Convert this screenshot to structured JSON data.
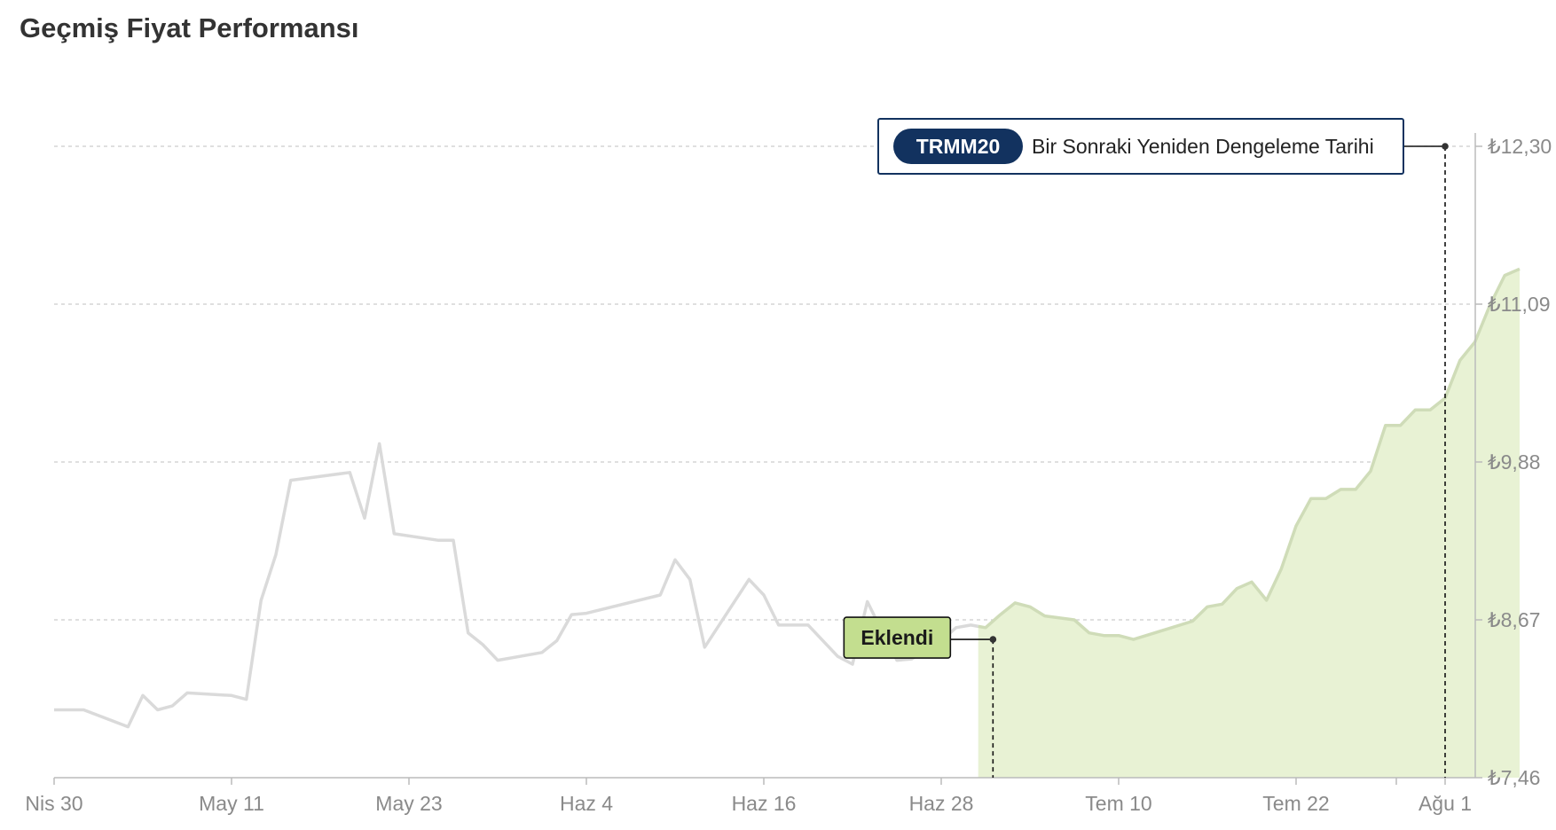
{
  "page": {
    "title": "Geçmiş Fiyat Performansı"
  },
  "chart_data": {
    "type": "line",
    "title": "",
    "xlabel": "",
    "ylabel": "",
    "x_tick_labels": [
      "Nis 30",
      "May 11",
      "May 23",
      "Haz 4",
      "Haz 16",
      "Haz 28",
      "Tem 10",
      "Tem 22",
      "Ağu 1"
    ],
    "y_tick_labels": [
      "₺7,46",
      "₺8,67",
      "₺9,88",
      "₺11,09",
      "₺12,30"
    ],
    "ylim": [
      7.46,
      12.3
    ],
    "grid": true,
    "colors": {
      "line": "#dadada",
      "highlight_line": "#cfdcb8",
      "highlight_fill": "#e8f2d4",
      "badge": "#12325f",
      "added_label_fill": "#c3de8f",
      "grid": "#cccccc",
      "axis": "#bbbbbb",
      "tick_text": "#8a8a8a"
    },
    "series": [
      {
        "values": [
          [
            0,
            7.98
          ],
          [
            2,
            7.98
          ],
          [
            5,
            7.85
          ],
          [
            6,
            8.09
          ],
          [
            7,
            7.98
          ],
          [
            8,
            8.01
          ],
          [
            9,
            8.11
          ],
          [
            12,
            8.09
          ],
          [
            13,
            8.06
          ],
          [
            14,
            8.82
          ],
          [
            15,
            9.17
          ],
          [
            16,
            9.74
          ],
          [
            20,
            9.8
          ],
          [
            21,
            9.45
          ],
          [
            22,
            10.02
          ],
          [
            23,
            9.33
          ],
          [
            26,
            9.28
          ],
          [
            27,
            9.28
          ],
          [
            28,
            8.57
          ],
          [
            29,
            8.48
          ],
          [
            30,
            8.36
          ],
          [
            33,
            8.42
          ],
          [
            34,
            8.51
          ],
          [
            35,
            8.71
          ],
          [
            36,
            8.72
          ],
          [
            41,
            8.86
          ],
          [
            42,
            9.13
          ],
          [
            43,
            8.98
          ],
          [
            44,
            8.46
          ],
          [
            47,
            8.98
          ],
          [
            48,
            8.86
          ],
          [
            49,
            8.63
          ],
          [
            51,
            8.63
          ],
          [
            53,
            8.39
          ],
          [
            54,
            8.33
          ],
          [
            55,
            8.81
          ],
          [
            56,
            8.58
          ],
          [
            57,
            8.36
          ],
          [
            58,
            8.37
          ],
          [
            60,
            8.51
          ],
          [
            61,
            8.61
          ],
          [
            62,
            8.63
          ],
          [
            63,
            8.61
          ],
          [
            64,
            8.71
          ],
          [
            65,
            8.8
          ],
          [
            66,
            8.77
          ],
          [
            67,
            8.7
          ],
          [
            69,
            8.67
          ],
          [
            70,
            8.57
          ],
          [
            71,
            8.55
          ],
          [
            72,
            8.55
          ],
          [
            73,
            8.52
          ],
          [
            75,
            8.59
          ],
          [
            77,
            8.66
          ],
          [
            78,
            8.77
          ],
          [
            79,
            8.79
          ],
          [
            80,
            8.91
          ],
          [
            81,
            8.96
          ],
          [
            82,
            8.82
          ],
          [
            83,
            9.06
          ],
          [
            84,
            9.39
          ],
          [
            85,
            9.6
          ],
          [
            86,
            9.6
          ],
          [
            87,
            9.67
          ],
          [
            88,
            9.67
          ],
          [
            89,
            9.81
          ],
          [
            90,
            10.16
          ],
          [
            91,
            10.16
          ],
          [
            92,
            10.28
          ],
          [
            93,
            10.28
          ],
          [
            94,
            10.37
          ],
          [
            95,
            10.66
          ],
          [
            96,
            10.8
          ],
          [
            97,
            11.08
          ],
          [
            98,
            11.31
          ],
          [
            99,
            11.36
          ]
        ]
      }
    ],
    "highlight_start_x": 62.5,
    "markers": [
      {
        "x": 63.5,
        "y": 8.52,
        "label": "Eklendi"
      },
      {
        "x": 94,
        "y": 12.3,
        "badge": "TRMM20",
        "label": "Bir Sonraki Yeniden Dengeleme Tarihi"
      }
    ]
  }
}
